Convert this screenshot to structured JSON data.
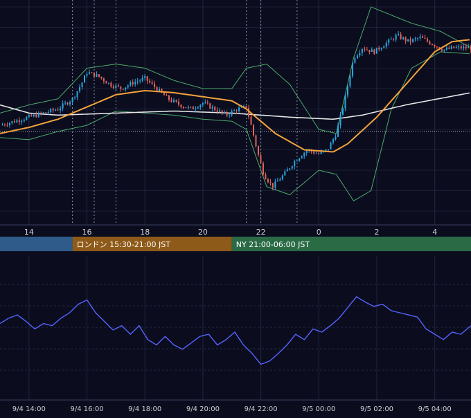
{
  "colors": {
    "background": "#0b0d1f",
    "grid": "#2a2f4a",
    "candle_up": "#2aa8e0",
    "candle_down": "#e8645a",
    "ma_orange": "#f5a33b",
    "ma_white": "#e6e6e6",
    "bollinger": "#4caa6a",
    "oscillator": "#5663ff",
    "session_asia": "#2f5b8a",
    "session_london": "#8e5a19",
    "session_ny": "#2a6b46",
    "axis_text": "#d0d0d0"
  },
  "main_axis": {
    "tick_labels": [
      "14",
      "16",
      "18",
      "20",
      "22",
      "0",
      "2",
      "4"
    ]
  },
  "sessions": [
    {
      "name": "asia",
      "label": ""
    },
    {
      "name": "london",
      "label": "ロンドン 15:30-21:00 JST"
    },
    {
      "name": "ny",
      "label": "NY 21:00-06:00 JST"
    }
  ],
  "sub_axis": {
    "tick_labels": [
      "9/4 14:00",
      "9/4 16:00",
      "9/4 18:00",
      "9/4 20:00",
      "9/4 22:00",
      "9/5 00:00",
      "9/5 02:00",
      "9/5 04:00"
    ]
  },
  "chart_data": [
    {
      "type": "candlestick",
      "xlabel": "",
      "ylabel": "",
      "x_range": [
        13.0,
        29.25
      ],
      "y_range": [
        0,
        100
      ],
      "grid": true,
      "legend": "none",
      "tick_hours": [
        14,
        16,
        18,
        20,
        22,
        24,
        26,
        28
      ],
      "session_boundaries_hours": [
        15.5,
        16.25,
        17.0,
        21.5,
        22.0,
        23.25
      ],
      "session_ranges_hours": [
        [
          13.0,
          15.5
        ],
        [
          15.5,
          21.0
        ],
        [
          21.0,
          29.25
        ]
      ],
      "price_path_keypoints": [
        [
          13.0,
          42
        ],
        [
          13.5,
          44
        ],
        [
          14.0,
          46
        ],
        [
          14.5,
          48
        ],
        [
          15.0,
          50
        ],
        [
          15.5,
          55
        ],
        [
          15.8,
          62
        ],
        [
          16.0,
          68
        ],
        [
          16.4,
          66
        ],
        [
          16.8,
          62
        ],
        [
          17.2,
          60
        ],
        [
          17.6,
          63
        ],
        [
          18.0,
          65
        ],
        [
          18.4,
          60
        ],
        [
          18.8,
          55
        ],
        [
          19.2,
          52
        ],
        [
          19.6,
          50
        ],
        [
          20.0,
          53
        ],
        [
          20.4,
          50
        ],
        [
          20.8,
          47
        ],
        [
          21.2,
          50
        ],
        [
          21.5,
          51
        ],
        [
          21.7,
          40
        ],
        [
          21.9,
          28
        ],
        [
          22.1,
          18
        ],
        [
          22.4,
          12
        ],
        [
          22.8,
          18
        ],
        [
          23.2,
          25
        ],
        [
          23.6,
          30
        ],
        [
          24.0,
          28
        ],
        [
          24.3,
          30
        ],
        [
          24.6,
          38
        ],
        [
          24.9,
          55
        ],
        [
          25.2,
          75
        ],
        [
          25.5,
          80
        ],
        [
          25.9,
          78
        ],
        [
          26.3,
          82
        ],
        [
          26.7,
          86
        ],
        [
          27.1,
          83
        ],
        [
          27.5,
          85
        ],
        [
          27.9,
          82
        ],
        [
          28.3,
          79
        ],
        [
          28.7,
          80
        ],
        [
          29.25,
          80
        ]
      ],
      "ma_orange_keypoints": [
        [
          13.0,
          38
        ],
        [
          14.0,
          41
        ],
        [
          15.0,
          45
        ],
        [
          16.0,
          51
        ],
        [
          17.0,
          57
        ],
        [
          18.0,
          59
        ],
        [
          19.0,
          58
        ],
        [
          20.0,
          56
        ],
        [
          21.0,
          54
        ],
        [
          21.5,
          50
        ],
        [
          22.5,
          38
        ],
        [
          23.5,
          30
        ],
        [
          24.5,
          29
        ],
        [
          25.0,
          33
        ],
        [
          26.0,
          46
        ],
        [
          27.0,
          62
        ],
        [
          28.0,
          78
        ],
        [
          28.6,
          83
        ],
        [
          29.25,
          84
        ]
      ],
      "ma_white_keypoints": [
        [
          13.0,
          52
        ],
        [
          14.0,
          48
        ],
        [
          15.0,
          47
        ],
        [
          17.0,
          48
        ],
        [
          19.0,
          49
        ],
        [
          21.0,
          48
        ],
        [
          23.0,
          46
        ],
        [
          24.5,
          45
        ],
        [
          25.5,
          47
        ],
        [
          27.0,
          52
        ],
        [
          28.5,
          56
        ],
        [
          29.25,
          58
        ]
      ],
      "bollinger_upper_keypoints": [
        [
          13.0,
          48
        ],
        [
          14.0,
          52
        ],
        [
          15.0,
          55
        ],
        [
          16.0,
          70
        ],
        [
          17.0,
          72
        ],
        [
          18.0,
          70
        ],
        [
          19.0,
          64
        ],
        [
          20.0,
          60
        ],
        [
          21.0,
          60
        ],
        [
          21.5,
          70
        ],
        [
          22.2,
          72
        ],
        [
          23.0,
          62
        ],
        [
          24.0,
          40
        ],
        [
          24.6,
          38
        ],
        [
          25.2,
          75
        ],
        [
          25.8,
          100
        ],
        [
          26.5,
          96
        ],
        [
          27.2,
          92
        ],
        [
          28.2,
          88
        ],
        [
          29.25,
          80
        ]
      ],
      "bollinger_lower_keypoints": [
        [
          13.0,
          36
        ],
        [
          14.0,
          35
        ],
        [
          15.0,
          39
        ],
        [
          16.0,
          42
        ],
        [
          17.0,
          49
        ],
        [
          18.0,
          48
        ],
        [
          19.0,
          47
        ],
        [
          20.0,
          45
        ],
        [
          21.0,
          44
        ],
        [
          21.5,
          40
        ],
        [
          22.2,
          12
        ],
        [
          23.0,
          8
        ],
        [
          24.0,
          20
        ],
        [
          24.6,
          18
        ],
        [
          25.2,
          5
        ],
        [
          25.8,
          10
        ],
        [
          26.5,
          50
        ],
        [
          27.2,
          70
        ],
        [
          28.2,
          78
        ],
        [
          29.25,
          77
        ]
      ]
    },
    {
      "type": "line",
      "xlabel": "",
      "ylabel": "",
      "x_range": [
        13.0,
        29.25
      ],
      "y_range": [
        0,
        100
      ],
      "grid": true,
      "legend": "none",
      "tick_hours": [
        14,
        16,
        18,
        20,
        22,
        24,
        26,
        28
      ],
      "oscillator_keypoints": [
        [
          13.0,
          50
        ],
        [
          13.3,
          55
        ],
        [
          13.6,
          58
        ],
        [
          13.9,
          52
        ],
        [
          14.2,
          45
        ],
        [
          14.5,
          50
        ],
        [
          14.8,
          48
        ],
        [
          15.1,
          55
        ],
        [
          15.4,
          60
        ],
        [
          15.7,
          68
        ],
        [
          16.0,
          72
        ],
        [
          16.3,
          60
        ],
        [
          16.6,
          52
        ],
        [
          16.9,
          44
        ],
        [
          17.2,
          48
        ],
        [
          17.5,
          40
        ],
        [
          17.8,
          48
        ],
        [
          18.1,
          35
        ],
        [
          18.4,
          30
        ],
        [
          18.7,
          38
        ],
        [
          19.0,
          30
        ],
        [
          19.3,
          26
        ],
        [
          19.6,
          32
        ],
        [
          19.9,
          38
        ],
        [
          20.2,
          40
        ],
        [
          20.5,
          30
        ],
        [
          20.8,
          35
        ],
        [
          21.1,
          42
        ],
        [
          21.4,
          30
        ],
        [
          21.7,
          22
        ],
        [
          22.0,
          12
        ],
        [
          22.3,
          15
        ],
        [
          22.6,
          22
        ],
        [
          22.9,
          30
        ],
        [
          23.2,
          40
        ],
        [
          23.5,
          35
        ],
        [
          23.8,
          45
        ],
        [
          24.1,
          42
        ],
        [
          24.4,
          48
        ],
        [
          24.7,
          55
        ],
        [
          25.0,
          65
        ],
        [
          25.3,
          75
        ],
        [
          25.6,
          70
        ],
        [
          25.9,
          66
        ],
        [
          26.2,
          68
        ],
        [
          26.5,
          62
        ],
        [
          26.8,
          60
        ],
        [
          27.1,
          58
        ],
        [
          27.4,
          56
        ],
        [
          27.7,
          45
        ],
        [
          28.0,
          40
        ],
        [
          28.3,
          35
        ],
        [
          28.6,
          42
        ],
        [
          28.9,
          40
        ],
        [
          29.25,
          48
        ]
      ]
    }
  ]
}
